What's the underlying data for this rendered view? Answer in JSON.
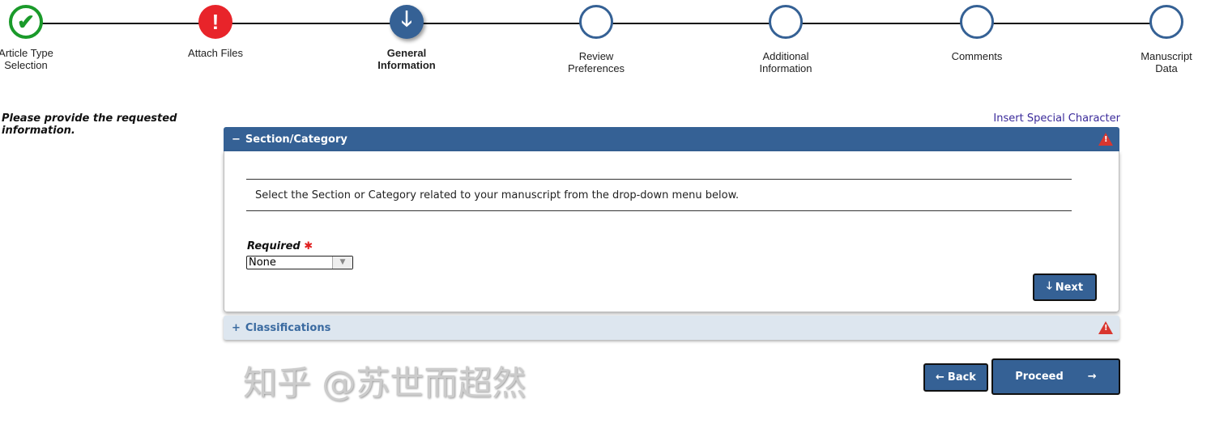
{
  "steps": [
    {
      "label1": "Article Type",
      "label2": "Selection",
      "status": "complete",
      "icon": "check-icon"
    },
    {
      "label1": "Attach Files",
      "label2": "",
      "status": "error",
      "icon": "exclamation-icon"
    },
    {
      "label1": "General",
      "label2": "Information",
      "status": "current",
      "icon": "arrow-down-icon"
    },
    {
      "label1": "Review",
      "label2": "Preferences",
      "status": "todo",
      "icon": "empty-circle-icon"
    },
    {
      "label1": "Additional",
      "label2": "Information",
      "status": "todo",
      "icon": "empty-circle-icon"
    },
    {
      "label1": "Comments",
      "label2": "",
      "status": "todo",
      "icon": "empty-circle-icon"
    },
    {
      "label1": "Manuscript",
      "label2": "Data",
      "status": "todo",
      "icon": "empty-circle-icon"
    }
  ],
  "instructions": "Please provide the requested information.",
  "insert_special": "Insert Special Character",
  "section": {
    "title": "Section/Category",
    "toggle": "−",
    "description": "Select the Section or Category related to your manuscript from the drop-down menu below.",
    "required_label": "Required",
    "required_mark": "✱",
    "select_value": "None",
    "next_label": "Next"
  },
  "classifications": {
    "title": "Classifications",
    "toggle": "+"
  },
  "buttons": {
    "back": "Back",
    "proceed": "Proceed"
  },
  "watermark": "知乎 @苏世而超然",
  "colors": {
    "primary": "#356195",
    "error": "#e8242a",
    "complete": "#1a9a2a"
  }
}
